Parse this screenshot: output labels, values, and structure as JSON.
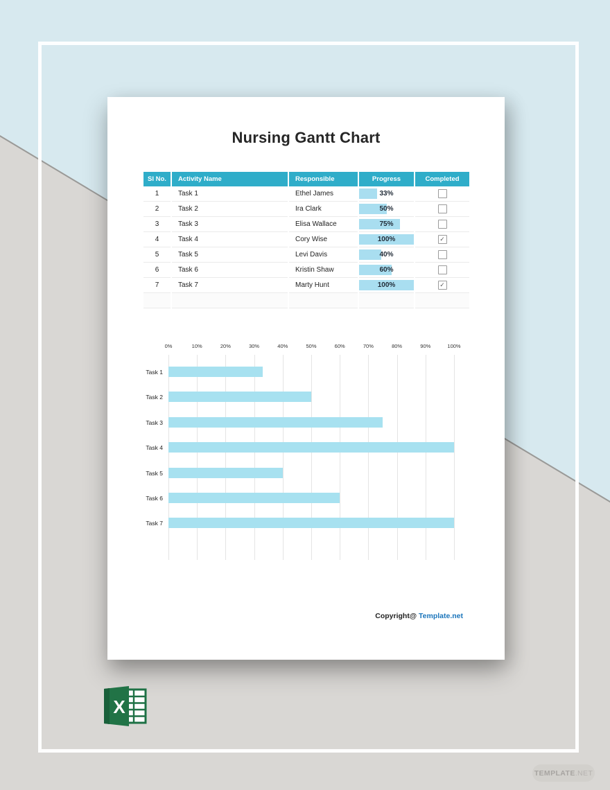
{
  "page": {
    "title": "Nursing Gantt Chart",
    "footer": {
      "copyright_prefix": "Copyright@",
      "copyright_brand": "Template.net"
    }
  },
  "table": {
    "headers": [
      "Sl No.",
      "Activity Name",
      "Responsible",
      "Progress",
      "Completed"
    ],
    "rows": [
      {
        "sl": "1",
        "activity": "Task 1",
        "responsible": "Ethel James",
        "progress": 33,
        "progress_label": "33%",
        "completed": false
      },
      {
        "sl": "2",
        "activity": "Task 2",
        "responsible": "Ira Clark",
        "progress": 50,
        "progress_label": "50%",
        "completed": false
      },
      {
        "sl": "3",
        "activity": "Task 3",
        "responsible": "Elisa Wallace",
        "progress": 75,
        "progress_label": "75%",
        "completed": false
      },
      {
        "sl": "4",
        "activity": "Task 4",
        "responsible": "Cory Wise",
        "progress": 100,
        "progress_label": "100%",
        "completed": true
      },
      {
        "sl": "5",
        "activity": "Task 5",
        "responsible": "Levi Davis",
        "progress": 40,
        "progress_label": "40%",
        "completed": false
      },
      {
        "sl": "6",
        "activity": "Task 6",
        "responsible": "Kristin Shaw",
        "progress": 60,
        "progress_label": "60%",
        "completed": false
      },
      {
        "sl": "7",
        "activity": "Task 7",
        "responsible": "Marty Hunt",
        "progress": 100,
        "progress_label": "100%",
        "completed": true
      }
    ],
    "check_glyph": "✓"
  },
  "chart_data": {
    "type": "bar",
    "orientation": "horizontal",
    "title": "",
    "categories": [
      "Task 1",
      "Task 2",
      "Task 3",
      "Task 4",
      "Task 5",
      "Task 6",
      "Task 7"
    ],
    "values": [
      33,
      50,
      75,
      100,
      40,
      60,
      100
    ],
    "x_ticks": [
      "0%",
      "10%",
      "20%",
      "30%",
      "40%",
      "50%",
      "60%",
      "70%",
      "80%",
      "90%",
      "100%"
    ],
    "xlim": [
      0,
      100
    ],
    "grid": true,
    "legend": false
  },
  "file_badge": {
    "type": "excel-file",
    "letter": "X"
  },
  "watermark": {
    "brand_bold": "TEMPLATE",
    "brand_rest": ".NET"
  },
  "colors": {
    "teal": "#2fadc9",
    "progressFill": "#a9def0",
    "chartBar": "#a7e1f0",
    "linkBlue": "#1b75bb",
    "excelGreen": "#217346",
    "excelGreenDark": "#19603a",
    "bgBlue": "#d7e9ef",
    "bgGray": "#d9d7d4"
  }
}
